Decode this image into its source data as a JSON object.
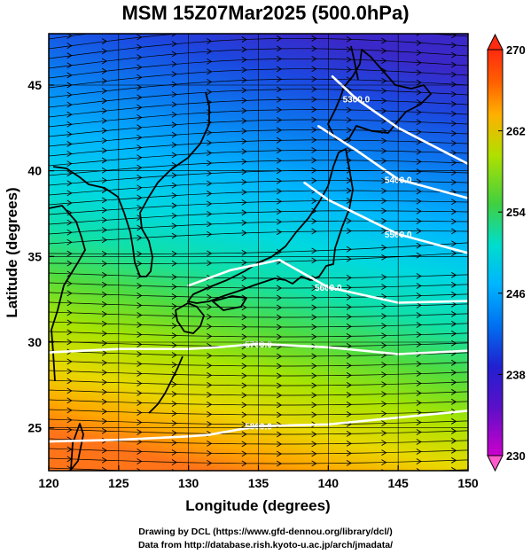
{
  "title": "MSM 15Z07Mar2025 (500.0hPa)",
  "x_axis": {
    "label": "Longitude (degrees)",
    "range": [
      120,
      150
    ],
    "ticks": [
      "120",
      "125",
      "130",
      "135",
      "140",
      "145",
      "150"
    ]
  },
  "y_axis": {
    "label": "Latitude  (degrees)",
    "range": [
      22.5,
      48
    ],
    "ticks": [
      "25",
      "30",
      "35",
      "40",
      "45"
    ]
  },
  "colorbar": {
    "ticks": [
      "230",
      "238",
      "246",
      "254",
      "262",
      "270"
    ],
    "range": [
      230,
      270
    ],
    "colors": [
      "#cc00cc",
      "#2020d0",
      "#00b4ff",
      "#00ddcc",
      "#40d040",
      "#d8e000",
      "#ffa000",
      "#ff3010"
    ]
  },
  "contour_labels": [
    "5300.0",
    "5400.0",
    "5500.0",
    "5600.0",
    "5700.0",
    "5800.0",
    "5900.0"
  ],
  "credits": {
    "line1": "Drawing by DCL (https://www.gfd-dennou.org/library/dcl/)",
    "line2": "Data from http://database.rish.kyoto-u.ac.jp/arch/jmadata/"
  },
  "chart_data": {
    "type": "map",
    "title": "MSM 15Z07Mar2025 (500.0hPa)",
    "xlabel": "Longitude (degrees)",
    "ylabel": "Latitude  (degrees)",
    "xlim": [
      120,
      150
    ],
    "ylim": [
      22.5,
      48
    ],
    "colorbar_range": [
      230,
      270
    ],
    "contours": [
      {
        "label": "5300.0",
        "lon": [
          140.3,
          142,
          145,
          150
        ],
        "lat": [
          45.5,
          44.2,
          42.5,
          40.4
        ]
      },
      {
        "label": "5400.0",
        "lon": [
          139.3,
          142,
          145,
          150
        ],
        "lat": [
          42.6,
          41.2,
          39.5,
          38.4
        ]
      },
      {
        "label": "5500.0",
        "lon": [
          138.3,
          140,
          145,
          150
        ],
        "lat": [
          39.3,
          38.3,
          36.3,
          35.2
        ]
      },
      {
        "label": "5600.0",
        "lon": [
          130,
          133,
          136.5,
          140,
          145,
          150
        ],
        "lat": [
          33.3,
          34.2,
          34.8,
          33.2,
          32.3,
          32.4
        ]
      },
      {
        "label": "5700.0",
        "lon": [
          120,
          125,
          130,
          132,
          135,
          140,
          145,
          150
        ],
        "lat": [
          29.4,
          29.6,
          29.6,
          29.7,
          29.9,
          29.7,
          29.3,
          29.5
        ]
      },
      {
        "label": "5800.0",
        "lon": [
          120,
          125,
          130,
          131.5,
          135,
          140,
          145,
          150
        ],
        "lat": [
          24.2,
          24.3,
          24.5,
          24.6,
          25.1,
          25.2,
          25.6,
          26.0
        ]
      }
    ]
  }
}
